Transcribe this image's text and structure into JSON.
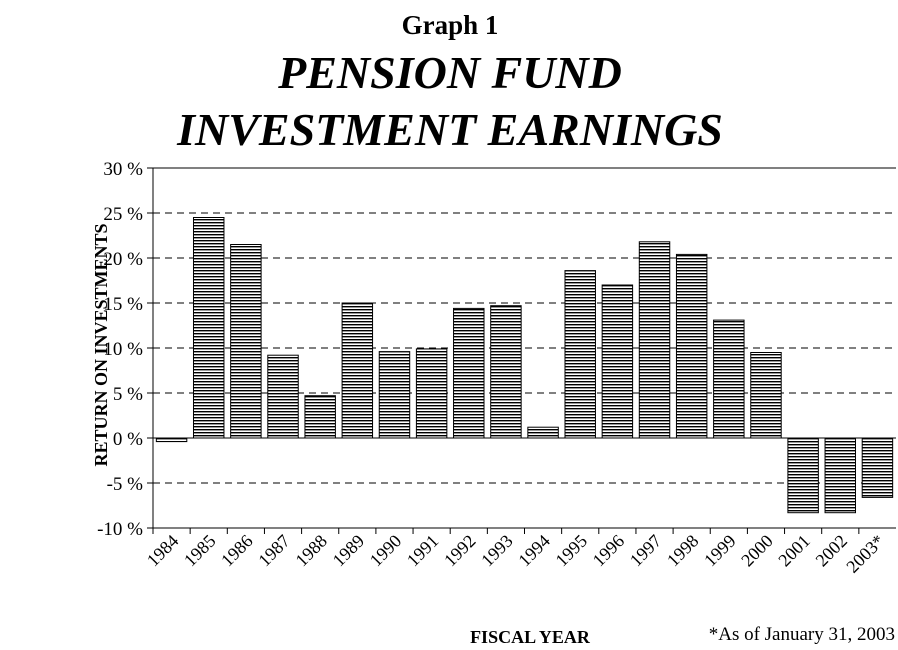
{
  "chart_data": {
    "type": "bar",
    "title": "Graph 1",
    "subtitle": "PENSION FUND INVESTMENT EARNINGS",
    "subtitle_lines": [
      "PENSION FUND",
      "INVESTMENT EARNINGS"
    ],
    "y_label": "RETURN ON INVESTMENTS",
    "x_label": "FISCAL YEAR",
    "annotation": "*As of January 31, 2003",
    "categories": [
      "1984",
      "1985",
      "1986",
      "1987",
      "1988",
      "1989",
      "1990",
      "1991",
      "1992",
      "1993",
      "1994",
      "1995",
      "1996",
      "1997",
      "1998",
      "1999",
      "2000",
      "2001",
      "2002",
      "2003*"
    ],
    "values": [
      -0.4,
      24.5,
      21.5,
      9.2,
      4.7,
      15.0,
      9.6,
      9.9,
      14.4,
      14.7,
      1.2,
      18.6,
      17.0,
      21.8,
      20.4,
      13.1,
      9.5,
      -8.3,
      -8.3,
      -6.6
    ],
    "color": "#000000",
    "ylim": [
      -10,
      30
    ],
    "yticks": [
      {
        "value": -10,
        "label": "-10 %"
      },
      {
        "value": -5,
        "label": "-5 %"
      },
      {
        "value": 0,
        "label": "0 %"
      },
      {
        "value": 5,
        "label": "5 %"
      },
      {
        "value": 10,
        "label": "10 %"
      },
      {
        "value": 15,
        "label": "15 %"
      },
      {
        "value": 20,
        "label": "20 %"
      },
      {
        "value": 25,
        "label": "25 %"
      },
      {
        "value": 30,
        "label": "30 %"
      }
    ],
    "grid": true
  }
}
